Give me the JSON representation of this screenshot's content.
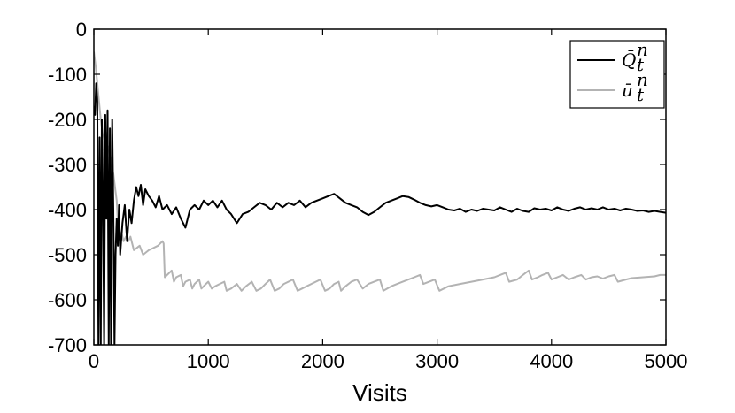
{
  "chart_data": {
    "type": "line",
    "title": "",
    "xlabel": "Visits",
    "ylabel": "",
    "xlim": [
      0,
      5000
    ],
    "ylim": [
      -700,
      0
    ],
    "xticks": [
      0,
      1000,
      2000,
      3000,
      4000,
      5000
    ],
    "xtick_labels": [
      "0",
      "1000",
      "2000",
      "3000",
      "4000",
      "5000"
    ],
    "yticks": [
      0,
      -100,
      -200,
      -300,
      -400,
      -500,
      -600,
      -700
    ],
    "ytick_labels": [
      "0",
      "-100",
      "-200",
      "-300",
      "-400",
      "-500",
      "-600",
      "-700"
    ],
    "grid": false,
    "legend_position": "top-right",
    "series": [
      {
        "name": "Q̄_t^n",
        "legend": {
          "base": "Q̄",
          "sup": "n",
          "sub": "t"
        },
        "color": "#000000",
        "points": [
          [
            0,
            -170
          ],
          [
            10,
            -190
          ],
          [
            20,
            -120
          ],
          [
            30,
            -160
          ],
          [
            40,
            -700
          ],
          [
            50,
            -240
          ],
          [
            60,
            -700
          ],
          [
            70,
            -200
          ],
          [
            80,
            -380
          ],
          [
            90,
            -700
          ],
          [
            100,
            -190
          ],
          [
            110,
            -420
          ],
          [
            120,
            -180
          ],
          [
            130,
            -700
          ],
          [
            140,
            -220
          ],
          [
            150,
            -700
          ],
          [
            160,
            -200
          ],
          [
            170,
            -400
          ],
          [
            180,
            -700
          ],
          [
            190,
            -500
          ],
          [
            200,
            -420
          ],
          [
            210,
            -480
          ],
          [
            220,
            -390
          ],
          [
            230,
            -500
          ],
          [
            250,
            -430
          ],
          [
            270,
            -390
          ],
          [
            290,
            -470
          ],
          [
            310,
            -400
          ],
          [
            330,
            -430
          ],
          [
            350,
            -380
          ],
          [
            370,
            -350
          ],
          [
            390,
            -370
          ],
          [
            410,
            -345
          ],
          [
            430,
            -390
          ],
          [
            450,
            -355
          ],
          [
            480,
            -370
          ],
          [
            510,
            -380
          ],
          [
            540,
            -395
          ],
          [
            570,
            -370
          ],
          [
            600,
            -400
          ],
          [
            640,
            -390
          ],
          [
            680,
            -410
          ],
          [
            720,
            -395
          ],
          [
            760,
            -420
          ],
          [
            800,
            -440
          ],
          [
            840,
            -400
          ],
          [
            880,
            -390
          ],
          [
            920,
            -400
          ],
          [
            960,
            -380
          ],
          [
            1000,
            -390
          ],
          [
            1040,
            -380
          ],
          [
            1080,
            -395
          ],
          [
            1120,
            -380
          ],
          [
            1160,
            -400
          ],
          [
            1200,
            -410
          ],
          [
            1250,
            -430
          ],
          [
            1300,
            -410
          ],
          [
            1350,
            -405
          ],
          [
            1400,
            -395
          ],
          [
            1450,
            -385
          ],
          [
            1500,
            -390
          ],
          [
            1550,
            -400
          ],
          [
            1600,
            -385
          ],
          [
            1650,
            -395
          ],
          [
            1700,
            -385
          ],
          [
            1750,
            -390
          ],
          [
            1800,
            -380
          ],
          [
            1850,
            -395
          ],
          [
            1900,
            -385
          ],
          [
            1950,
            -380
          ],
          [
            2000,
            -375
          ],
          [
            2050,
            -370
          ],
          [
            2100,
            -365
          ],
          [
            2150,
            -375
          ],
          [
            2200,
            -385
          ],
          [
            2250,
            -390
          ],
          [
            2300,
            -395
          ],
          [
            2350,
            -405
          ],
          [
            2400,
            -412
          ],
          [
            2450,
            -405
          ],
          [
            2500,
            -395
          ],
          [
            2550,
            -385
          ],
          [
            2600,
            -380
          ],
          [
            2650,
            -375
          ],
          [
            2700,
            -370
          ],
          [
            2750,
            -372
          ],
          [
            2800,
            -378
          ],
          [
            2850,
            -385
          ],
          [
            2900,
            -390
          ],
          [
            2950,
            -393
          ],
          [
            3000,
            -390
          ],
          [
            3050,
            -395
          ],
          [
            3100,
            -400
          ],
          [
            3150,
            -402
          ],
          [
            3200,
            -398
          ],
          [
            3250,
            -405
          ],
          [
            3300,
            -400
          ],
          [
            3350,
            -403
          ],
          [
            3400,
            -398
          ],
          [
            3450,
            -400
          ],
          [
            3500,
            -402
          ],
          [
            3550,
            -395
          ],
          [
            3600,
            -400
          ],
          [
            3650,
            -405
          ],
          [
            3700,
            -398
          ],
          [
            3750,
            -403
          ],
          [
            3800,
            -405
          ],
          [
            3850,
            -397
          ],
          [
            3900,
            -400
          ],
          [
            3950,
            -398
          ],
          [
            4000,
            -402
          ],
          [
            4050,
            -395
          ],
          [
            4100,
            -400
          ],
          [
            4150,
            -403
          ],
          [
            4200,
            -398
          ],
          [
            4250,
            -395
          ],
          [
            4300,
            -400
          ],
          [
            4350,
            -397
          ],
          [
            4400,
            -400
          ],
          [
            4450,
            -395
          ],
          [
            4500,
            -400
          ],
          [
            4550,
            -398
          ],
          [
            4600,
            -402
          ],
          [
            4650,
            -398
          ],
          [
            4700,
            -400
          ],
          [
            4750,
            -403
          ],
          [
            4800,
            -402
          ],
          [
            4850,
            -405
          ],
          [
            4900,
            -403
          ],
          [
            4950,
            -405
          ],
          [
            5000,
            -407
          ]
        ]
      },
      {
        "name": "ū_t^n",
        "legend": {
          "base": "ū",
          "sup": "n",
          "sub": "t"
        },
        "color": "#b3b3b3",
        "points": [
          [
            0,
            -50
          ],
          [
            15,
            -80
          ],
          [
            30,
            -120
          ],
          [
            45,
            -160
          ],
          [
            60,
            -200
          ],
          [
            75,
            -230
          ],
          [
            90,
            -240
          ],
          [
            100,
            -260
          ],
          [
            110,
            -230
          ],
          [
            120,
            -270
          ],
          [
            130,
            -260
          ],
          [
            150,
            -300
          ],
          [
            170,
            -320
          ],
          [
            190,
            -360
          ],
          [
            200,
            -380
          ],
          [
            210,
            -430
          ],
          [
            220,
            -460
          ],
          [
            240,
            -450
          ],
          [
            260,
            -470
          ],
          [
            280,
            -460
          ],
          [
            300,
            -470
          ],
          [
            320,
            -460
          ],
          [
            350,
            -490
          ],
          [
            400,
            -480
          ],
          [
            430,
            -500
          ],
          [
            480,
            -490
          ],
          [
            520,
            -485
          ],
          [
            560,
            -480
          ],
          [
            600,
            -470
          ],
          [
            610,
            -475
          ],
          [
            620,
            -550
          ],
          [
            640,
            -545
          ],
          [
            660,
            -540
          ],
          [
            680,
            -535
          ],
          [
            700,
            -560
          ],
          [
            720,
            -550
          ],
          [
            760,
            -545
          ],
          [
            780,
            -570
          ],
          [
            800,
            -560
          ],
          [
            840,
            -555
          ],
          [
            860,
            -575
          ],
          [
            880,
            -565
          ],
          [
            920,
            -555
          ],
          [
            940,
            -575
          ],
          [
            980,
            -565
          ],
          [
            1000,
            -560
          ],
          [
            1030,
            -575
          ],
          [
            1060,
            -570
          ],
          [
            1100,
            -565
          ],
          [
            1140,
            -560
          ],
          [
            1160,
            -580
          ],
          [
            1200,
            -575
          ],
          [
            1250,
            -565
          ],
          [
            1290,
            -580
          ],
          [
            1330,
            -570
          ],
          [
            1380,
            -560
          ],
          [
            1420,
            -580
          ],
          [
            1460,
            -575
          ],
          [
            1500,
            -565
          ],
          [
            1540,
            -555
          ],
          [
            1580,
            -580
          ],
          [
            1620,
            -575
          ],
          [
            1660,
            -565
          ],
          [
            1700,
            -560
          ],
          [
            1740,
            -555
          ],
          [
            1780,
            -580
          ],
          [
            1820,
            -575
          ],
          [
            1860,
            -570
          ],
          [
            1900,
            -565
          ],
          [
            1940,
            -560
          ],
          [
            1980,
            -555
          ],
          [
            2020,
            -580
          ],
          [
            2060,
            -575
          ],
          [
            2100,
            -565
          ],
          [
            2140,
            -560
          ],
          [
            2160,
            -580
          ],
          [
            2200,
            -570
          ],
          [
            2250,
            -560
          ],
          [
            2300,
            -555
          ],
          [
            2350,
            -575
          ],
          [
            2400,
            -565
          ],
          [
            2450,
            -560
          ],
          [
            2500,
            -555
          ],
          [
            2530,
            -580
          ],
          [
            2600,
            -570
          ],
          [
            2650,
            -565
          ],
          [
            2700,
            -560
          ],
          [
            2750,
            -555
          ],
          [
            2800,
            -550
          ],
          [
            2850,
            -545
          ],
          [
            2880,
            -565
          ],
          [
            2930,
            -560
          ],
          [
            2980,
            -555
          ],
          [
            3020,
            -580
          ],
          [
            3100,
            -570
          ],
          [
            3200,
            -565
          ],
          [
            3300,
            -560
          ],
          [
            3400,
            -555
          ],
          [
            3500,
            -550
          ],
          [
            3550,
            -545
          ],
          [
            3600,
            -540
          ],
          [
            3630,
            -560
          ],
          [
            3700,
            -555
          ],
          [
            3750,
            -545
          ],
          [
            3800,
            -535
          ],
          [
            3830,
            -555
          ],
          [
            3880,
            -550
          ],
          [
            3920,
            -545
          ],
          [
            3970,
            -540
          ],
          [
            4000,
            -555
          ],
          [
            4050,
            -550
          ],
          [
            4100,
            -545
          ],
          [
            4150,
            -555
          ],
          [
            4200,
            -550
          ],
          [
            4260,
            -545
          ],
          [
            4300,
            -555
          ],
          [
            4350,
            -550
          ],
          [
            4400,
            -548
          ],
          [
            4450,
            -553
          ],
          [
            4500,
            -548
          ],
          [
            4550,
            -545
          ],
          [
            4580,
            -560
          ],
          [
            4650,
            -555
          ],
          [
            4700,
            -552
          ],
          [
            4800,
            -550
          ],
          [
            4900,
            -548
          ],
          [
            4950,
            -545
          ],
          [
            5000,
            -545
          ]
        ]
      }
    ]
  }
}
